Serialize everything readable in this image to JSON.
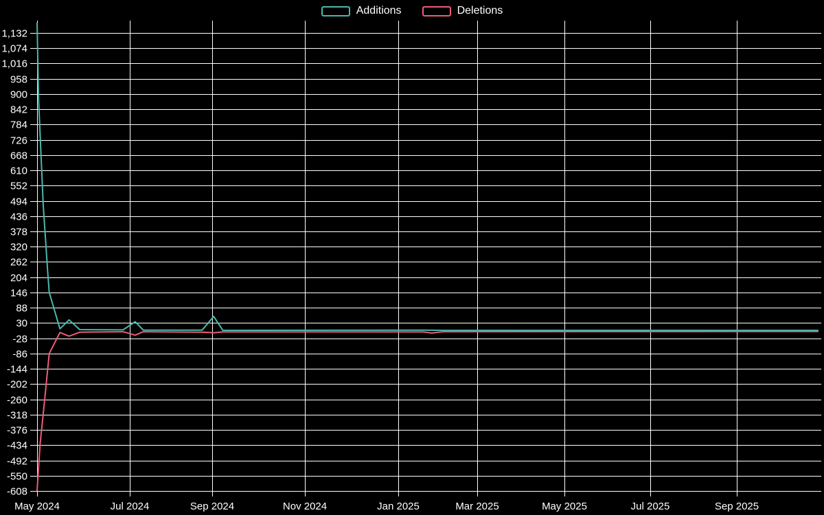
{
  "chart_data": {
    "type": "line",
    "title": "",
    "legend_position": "top-center",
    "background_color": "#000000",
    "grid_color": "#ffffff",
    "text_color": "#ffffff",
    "grid": true,
    "legend": [
      {
        "label": "Additions",
        "color": "#4bb8ae"
      },
      {
        "label": "Deletions",
        "color": "#ee5c78"
      }
    ],
    "x_tick_labels": [
      "May 2024",
      "Jul 2024",
      "Sep 2024",
      "Nov 2024",
      "Jan 2025",
      "Mar 2025",
      "May 2025",
      "Jul 2025",
      "Sep 2025"
    ],
    "y_ticks": [
      1132,
      1074,
      1016,
      958,
      900,
      842,
      784,
      726,
      668,
      610,
      552,
      494,
      436,
      378,
      320,
      262,
      204,
      146,
      88,
      30,
      -28,
      -86,
      -144,
      -202,
      -260,
      -318,
      -376,
      -434,
      -492,
      -550,
      -608
    ],
    "ylim": [
      -608,
      1171
    ],
    "x_range": [
      "2024-05-01",
      "2025-10-28"
    ],
    "series": [
      {
        "name": "Additions",
        "color": "#4bb8ae",
        "points": [
          [
            "2024-05-01",
            1171
          ],
          [
            "2024-05-02",
            880
          ],
          [
            "2024-05-05",
            480
          ],
          [
            "2024-05-08",
            222
          ],
          [
            "2024-05-09",
            146
          ],
          [
            "2024-05-16",
            8
          ],
          [
            "2024-05-22",
            42
          ],
          [
            "2024-05-29",
            5
          ],
          [
            "2024-06-27",
            4
          ],
          [
            "2024-07-05",
            35
          ],
          [
            "2024-07-11",
            3
          ],
          [
            "2024-08-24",
            3
          ],
          [
            "2024-09-02",
            55
          ],
          [
            "2024-09-08",
            2
          ],
          [
            "2025-01-20",
            3
          ],
          [
            "2025-02-05",
            2
          ],
          [
            "2025-10-28",
            2
          ]
        ]
      },
      {
        "name": "Deletions",
        "color": "#ee5c78",
        "points": [
          [
            "2024-05-01",
            -608
          ],
          [
            "2024-05-03",
            -430
          ],
          [
            "2024-05-06",
            -260
          ],
          [
            "2024-05-08",
            -144
          ],
          [
            "2024-05-09",
            -86
          ],
          [
            "2024-05-16",
            -6
          ],
          [
            "2024-05-22",
            -20
          ],
          [
            "2024-05-29",
            -5
          ],
          [
            "2024-06-27",
            -3
          ],
          [
            "2024-07-05",
            -16
          ],
          [
            "2024-07-11",
            -3
          ],
          [
            "2024-08-24",
            -5
          ],
          [
            "2024-09-02",
            -7
          ],
          [
            "2024-09-08",
            -4
          ],
          [
            "2025-01-20",
            -4
          ],
          [
            "2025-01-27",
            -8
          ],
          [
            "2025-02-05",
            -3
          ],
          [
            "2025-10-28",
            -2
          ]
        ]
      }
    ]
  }
}
